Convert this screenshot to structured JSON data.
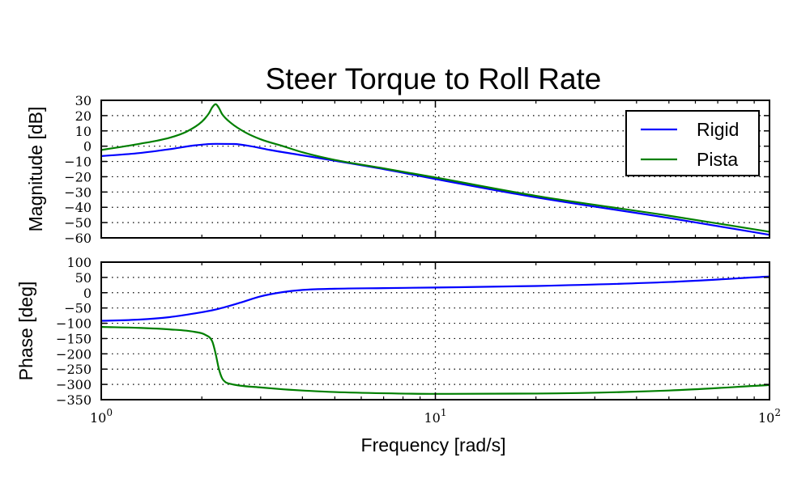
{
  "figure": {
    "title": "Steer Torque to Roll Rate"
  },
  "chart_data": [
    {
      "type": "line",
      "title": "Steer Torque to Roll Rate",
      "xlabel": "",
      "ylabel": "Magnitude [dB]",
      "xscale": "log",
      "xlim": [
        1,
        100
      ],
      "ylim": [
        -60,
        30
      ],
      "yticks": [
        30,
        20,
        10,
        0,
        -10,
        -20,
        -30,
        -40,
        -50,
        -60
      ],
      "ytick_labels": [
        "30",
        "20",
        "10",
        "0",
        "−10",
        "−20",
        "−30",
        "−40",
        "−50",
        "−60"
      ],
      "grid": true,
      "legend": "top-right",
      "series": [
        {
          "name": "Rigid",
          "color": "#0000ff",
          "x": [
            1,
            1.3,
            1.6,
            1.9,
            2.2,
            2.5,
            2.8,
            3.2,
            4,
            5,
            7,
            10,
            20,
            50,
            100
          ],
          "y": [
            -6.5,
            -4.5,
            -2,
            0.5,
            1.5,
            1.4,
            0,
            -2.5,
            -6,
            -9.5,
            -15,
            -21.5,
            -33.5,
            -47,
            -58
          ]
        },
        {
          "name": "Pista",
          "color": "#007f00",
          "x": [
            1,
            1.3,
            1.6,
            1.8,
            2.0,
            2.1,
            2.15,
            2.2,
            2.25,
            2.3,
            2.45,
            2.7,
            3.0,
            3.5,
            4,
            5,
            7,
            10,
            20,
            50,
            100
          ],
          "y": [
            -2.5,
            1.5,
            5.5,
            9.5,
            16,
            21.5,
            25.5,
            27.5,
            25,
            21,
            15,
            9,
            4.5,
            0,
            -4,
            -9,
            -14.5,
            -20.5,
            -32.5,
            -45.5,
            -56
          ]
        }
      ]
    },
    {
      "type": "line",
      "xlabel": "Frequency [rad/s]",
      "ylabel": "Phase [deg]",
      "xscale": "log",
      "xlim": [
        1,
        100
      ],
      "ylim": [
        -350,
        100
      ],
      "xticks": [
        1,
        10,
        100
      ],
      "xtick_labels": [
        {
          "base": "10",
          "exp": "0"
        },
        {
          "base": "10",
          "exp": "1"
        },
        {
          "base": "10",
          "exp": "2"
        }
      ],
      "yticks": [
        100,
        50,
        0,
        -50,
        -100,
        -150,
        -200,
        -250,
        -300,
        -350
      ],
      "ytick_labels": [
        "100",
        "50",
        "0",
        "−50",
        "−100",
        "−150",
        "−200",
        "−250",
        "−300",
        "−350"
      ],
      "grid": true,
      "series": [
        {
          "name": "Rigid",
          "color": "#0000ff",
          "x": [
            1,
            1.3,
            1.6,
            1.9,
            2.2,
            2.6,
            3,
            3.5,
            4,
            5,
            7,
            10,
            20,
            50,
            100
          ],
          "y": [
            -92,
            -88,
            -80,
            -68,
            -55,
            -33,
            -12,
            2,
            9,
            13,
            15,
            17,
            22,
            35,
            53
          ]
        },
        {
          "name": "Pista",
          "color": "#007f00",
          "x": [
            1,
            1.3,
            1.6,
            1.9,
            2.05,
            2.15,
            2.2,
            2.25,
            2.3,
            2.35,
            2.45,
            2.6,
            3,
            3.5,
            4,
            5,
            7,
            10,
            20,
            50,
            100
          ],
          "y": [
            -112,
            -115,
            -120,
            -128,
            -138,
            -160,
            -200,
            -250,
            -280,
            -292,
            -299,
            -304,
            -310,
            -316,
            -320,
            -325,
            -329,
            -331,
            -330,
            -320,
            -302
          ]
        }
      ]
    }
  ]
}
